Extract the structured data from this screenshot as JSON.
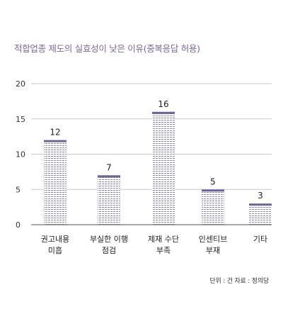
{
  "chart_data": {
    "type": "bar",
    "title": "적합업종 제도의 실효성이 낮은 이유(중복응답 허용)",
    "categories": [
      [
        "권고내용",
        "미흡"
      ],
      [
        "부실한 이행",
        "점검"
      ],
      [
        "제재 수단",
        "부족"
      ],
      [
        "인센티브",
        "부재"
      ],
      [
        "기타"
      ]
    ],
    "values": [
      12,
      7,
      16,
      5,
      3
    ],
    "ylim": [
      0,
      20
    ],
    "yticks": [
      0,
      5,
      10,
      15,
      20
    ],
    "grid": true,
    "data_labels": true
  },
  "source_note": "단위 : 건  자료 : 정의당",
  "colors": {
    "bar_cap": "#6e6593",
    "bar_stripe": "#8a8aa4",
    "grid": "#c9c9c9",
    "axis": "#555555",
    "title": "#7a6a96"
  }
}
